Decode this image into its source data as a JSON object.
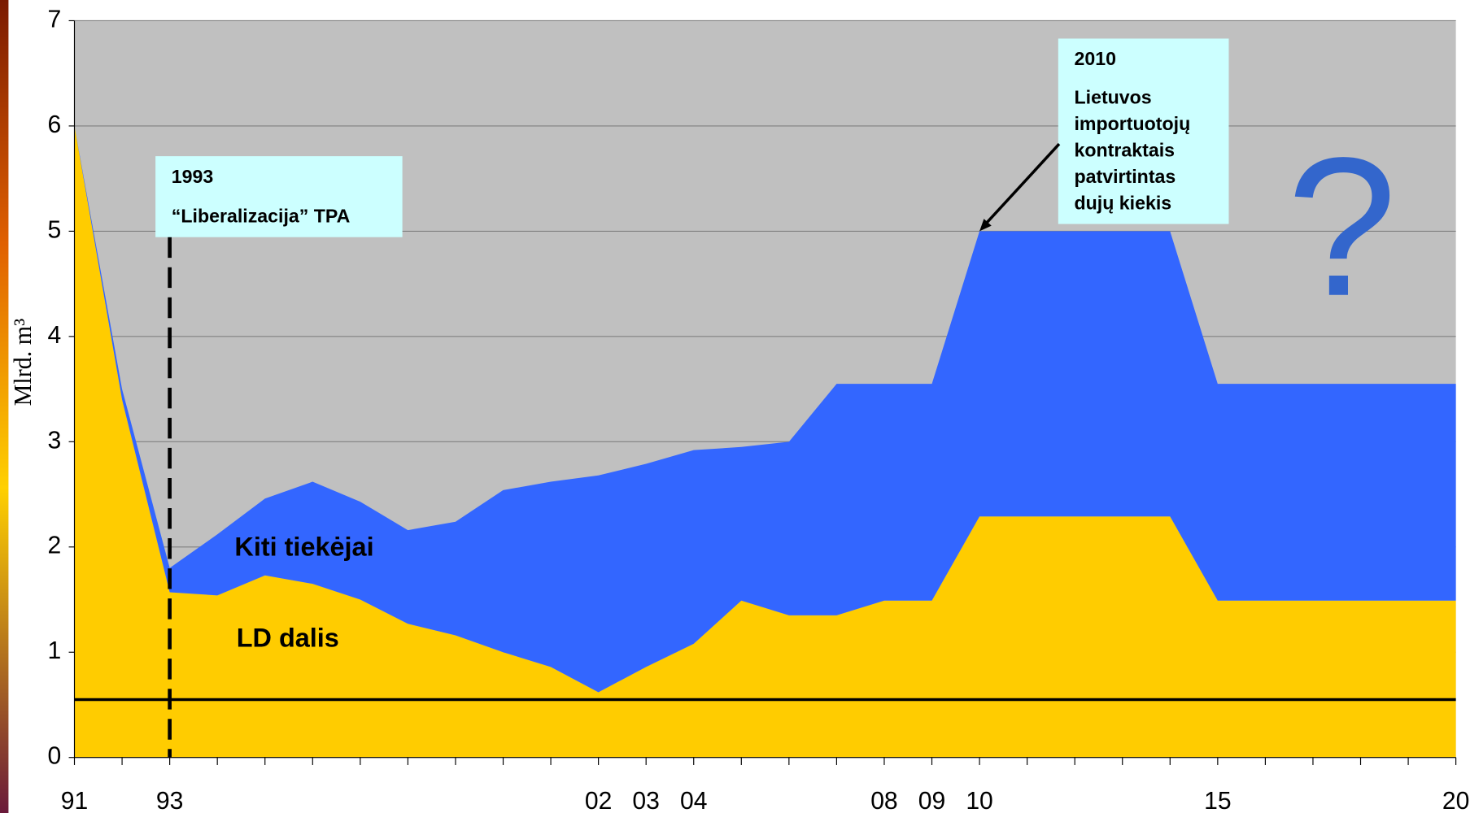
{
  "chart_data": {
    "type": "stacked_area",
    "y_label": "Mlrd. m³",
    "categories": [
      "91",
      null,
      "93",
      null,
      null,
      null,
      null,
      null,
      null,
      null,
      null,
      "02",
      "03",
      "04",
      null,
      null,
      null,
      "08",
      "09",
      "10",
      null,
      null,
      null,
      null,
      "15",
      null,
      null,
      null,
      null,
      "20"
    ],
    "series": [
      {
        "name": "LD dalis",
        "color": "#ffcc00",
        "values": [
          6.0,
          3.4,
          1.57,
          1.54,
          1.73,
          1.65,
          1.5,
          1.27,
          1.16,
          1.0,
          0.86,
          0.62,
          0.86,
          1.08,
          1.49,
          1.35,
          1.35,
          1.49,
          1.49,
          2.29,
          2.29,
          2.29,
          2.29,
          2.29,
          1.49,
          1.49,
          1.49,
          1.49,
          1.49,
          1.49
        ]
      },
      {
        "name": "Kiti tiekėjai",
        "color": "#3366ff",
        "values": [
          0,
          0.1,
          0.23,
          0.58,
          0.73,
          0.97,
          0.93,
          0.89,
          1.08,
          1.54,
          1.76,
          2.06,
          1.93,
          1.84,
          1.46,
          1.65,
          2.2,
          2.06,
          2.06,
          2.71,
          2.71,
          2.71,
          2.71,
          2.71,
          2.06,
          2.06,
          2.06,
          2.06,
          2.06,
          2.06
        ]
      }
    ],
    "ylim": [
      0,
      7
    ],
    "yticks": [
      0,
      1,
      2,
      3,
      4,
      5,
      6,
      7
    ],
    "grid": true,
    "reference_line": 0.55,
    "annotations": [
      {
        "label": "1993",
        "text": [
          "“Liberalizacija” TPA"
        ]
      },
      {
        "label": "2010",
        "text": [
          "Lietuvos",
          "importuotojų",
          "kontraktais",
          "patvirtintas",
          "dujų kiekis"
        ]
      }
    ],
    "question_mark": "?"
  }
}
